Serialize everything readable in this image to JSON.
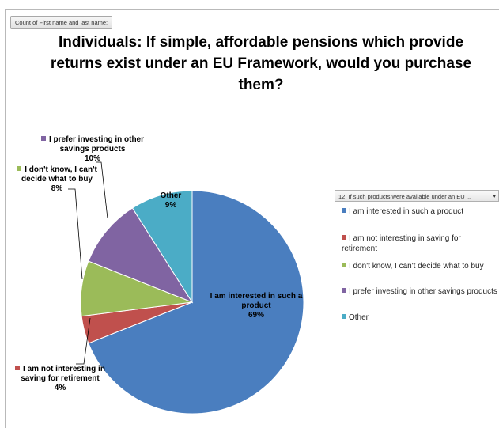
{
  "field_button": "Count of First name and last name:",
  "legend_filter": "12. If such products were available under an EU ...",
  "legend_arrow": "▾",
  "chart_data": {
    "type": "pie",
    "title": "Individuals:  If simple, affordable pensions which provide returns exist under an EU Framework, would you purchase them?",
    "legend_position": "right",
    "slices": [
      {
        "label": "I am interested in such a product",
        "value": 69,
        "display": "69%",
        "color": "#4a7ebf"
      },
      {
        "label": "I am not interesting in saving for retirement",
        "value": 4,
        "display": "4%",
        "color": "#c0504d"
      },
      {
        "label": "I don't know, I can't decide what to buy",
        "value": 8,
        "display": "8%",
        "color": "#9bbb59"
      },
      {
        "label": "I prefer investing in other savings products",
        "value": 10,
        "display": "10%",
        "color": "#8064a2"
      },
      {
        "label": "Other",
        "value": 9,
        "display": "9%",
        "color": "#4bacc6"
      }
    ],
    "slice_labels": [
      {
        "lines": [
          "I am interested in such a",
          "product"
        ]
      },
      {
        "lines": [
          "I am not interesting in",
          "saving for retirement"
        ]
      },
      {
        "lines": [
          "I don't know, I can't",
          "decide what to buy"
        ]
      },
      {
        "lines": [
          "I prefer investing in other",
          "savings products"
        ]
      },
      {
        "lines": [
          "Other"
        ]
      }
    ],
    "legend_labels": [
      [
        "I am interested in such a product"
      ],
      [
        "I am not interesting in saving for",
        "retirement"
      ],
      [
        "I don't know, I can't decide what to buy"
      ],
      [
        "I prefer investing in other savings products"
      ],
      [
        "Other"
      ]
    ]
  }
}
